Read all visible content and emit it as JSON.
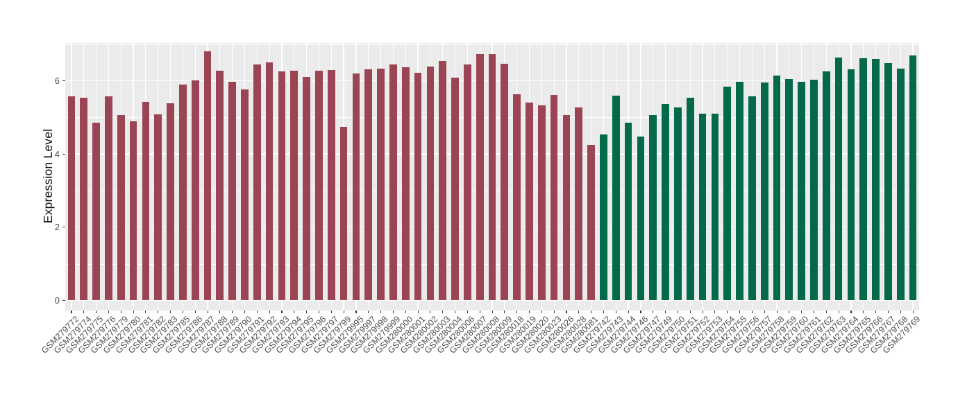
{
  "figure": {
    "background": "#FFFFFF",
    "panel_background": "#EBEBEB",
    "gridline_color": "#FFFFFF"
  },
  "chart_data": {
    "type": "bar",
    "title": "",
    "xlabel": "",
    "ylabel": "Expression Level",
    "ylim": [
      0,
      7.05
    ],
    "yticks": [
      0,
      2,
      4,
      6
    ],
    "yticks_minor": [
      1,
      3,
      5,
      7
    ],
    "grid": "white major and minor horizontal gridlines plus white vertical gridline at each bar center, ggplot-style grey panel",
    "legend_position": "none",
    "bar_color_groups": [
      {
        "hex": "#9A4454",
        "count": 43
      },
      {
        "hex": "#026A4A",
        "count": 26
      }
    ],
    "categories": [
      "GSM279772",
      "GSM279774",
      "GSM279775",
      "GSM279776",
      "GSM279779",
      "GSM279780",
      "GSM279781",
      "GSM279782",
      "GSM279783",
      "GSM279785",
      "GSM279786",
      "GSM279787",
      "GSM279788",
      "GSM279789",
      "GSM279790",
      "GSM279791",
      "GSM279792",
      "GSM279793",
      "GSM279794",
      "GSM279795",
      "GSM279796",
      "GSM279797",
      "GSM279799",
      "GSM279995",
      "GSM279997",
      "GSM279998",
      "GSM279999",
      "GSM280000",
      "GSM280001",
      "GSM280002",
      "GSM280003",
      "GSM280004",
      "GSM280006",
      "GSM280007",
      "GSM280008",
      "GSM280009",
      "GSM280018",
      "GSM280019",
      "GSM280020",
      "GSM280023",
      "GSM280026",
      "GSM280028",
      "GSM280081",
      "GSM279742",
      "GSM279743",
      "GSM279744",
      "GSM279746",
      "GSM279747",
      "GSM279749",
      "GSM279750",
      "GSM279751",
      "GSM279752",
      "GSM279753",
      "GSM279754",
      "GSM279755",
      "GSM279756",
      "GSM279757",
      "GSM279758",
      "GSM279759",
      "GSM279760",
      "GSM279761",
      "GSM279762",
      "GSM279763",
      "GSM279764",
      "GSM279765",
      "GSM279766",
      "GSM279767",
      "GSM279768",
      "GSM279769"
    ],
    "values": [
      5.58,
      5.53,
      4.85,
      5.57,
      5.06,
      4.9,
      5.43,
      5.09,
      5.38,
      5.89,
      6.01,
      6.8,
      6.27,
      5.98,
      5.76,
      6.45,
      6.51,
      6.25,
      6.28,
      6.1,
      6.27,
      6.3,
      4.75,
      6.19,
      6.32,
      6.34,
      6.45,
      6.37,
      6.22,
      6.38,
      6.54,
      6.08,
      6.45,
      6.73,
      6.73,
      6.46,
      5.63,
      5.41,
      5.32,
      5.62,
      5.06,
      5.28,
      4.25,
      4.53,
      5.59,
      4.86,
      4.48,
      5.06,
      5.37,
      5.28,
      5.54,
      5.1,
      5.1,
      5.83,
      5.97,
      5.58,
      5.95,
      6.15,
      6.05,
      5.97,
      6.03,
      6.25,
      6.63,
      6.32,
      6.62,
      6.59,
      6.49,
      6.34,
      6.7
    ]
  }
}
